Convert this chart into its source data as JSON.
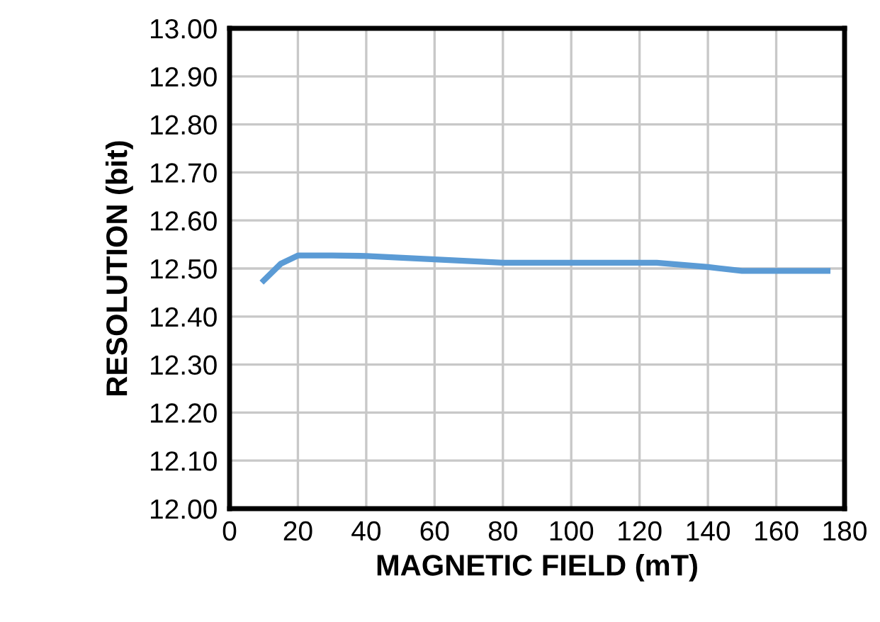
{
  "chart_data": {
    "type": "line",
    "xlabel": "MAGNETIC FIELD (mT)",
    "ylabel": "RESOLUTION (bit)",
    "x": [
      10,
      15,
      20,
      30,
      40,
      60,
      80,
      100,
      125,
      140,
      150,
      160,
      175
    ],
    "series": [
      {
        "color": "#5b9bd5",
        "values": [
          12.475,
          12.51,
          12.527,
          12.527,
          12.526,
          12.519,
          12.512,
          12.512,
          12.512,
          12.503,
          12.495,
          12.495,
          12.495
        ]
      }
    ],
    "xlim": [
      0,
      180
    ],
    "xticks": [
      0,
      20,
      40,
      60,
      80,
      100,
      120,
      140,
      160,
      180
    ],
    "ylim": [
      12.0,
      13.0
    ],
    "yticks": [
      {
        "value": 12.0,
        "label": "12.00"
      },
      {
        "value": 12.1,
        "label": "12.10"
      },
      {
        "value": 12.2,
        "label": "12.20"
      },
      {
        "value": 12.3,
        "label": "12.30"
      },
      {
        "value": 12.4,
        "label": "12.40"
      },
      {
        "value": 12.5,
        "label": "12.50"
      },
      {
        "value": 12.6,
        "label": "12.60"
      },
      {
        "value": 12.7,
        "label": "12.70"
      },
      {
        "value": 12.8,
        "label": "12.80"
      },
      {
        "value": 12.9,
        "label": "12.90"
      },
      {
        "value": 13.0,
        "label": "13.00"
      }
    ],
    "grid": true,
    "marker": "none",
    "line_style": "solid",
    "legend": false
  }
}
